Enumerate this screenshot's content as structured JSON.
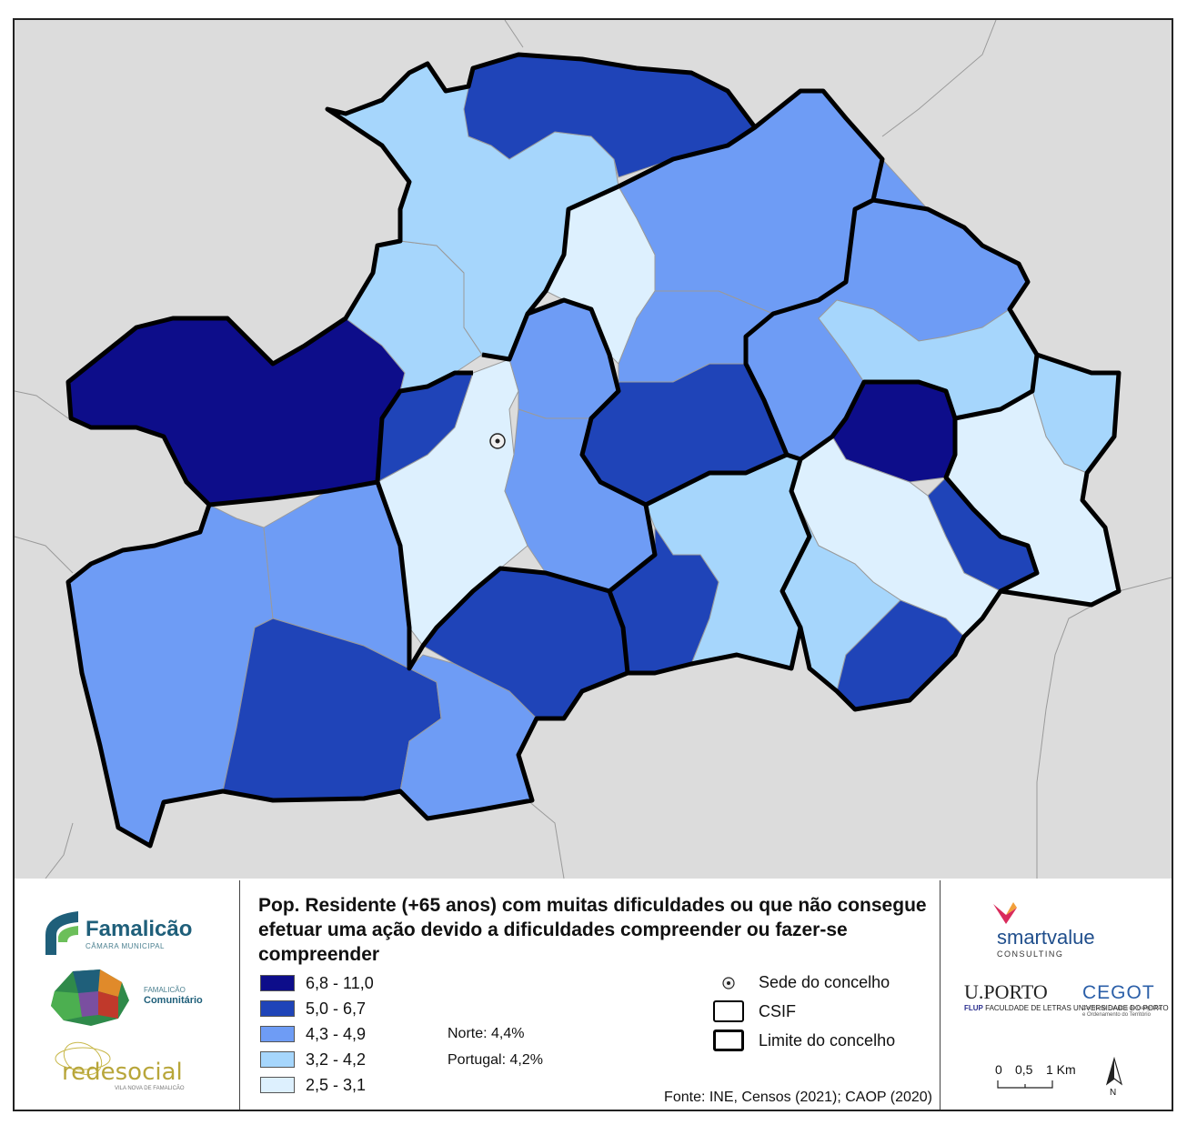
{
  "title": "Pop. Residente (+65 anos) com muitas dificuldades ou que não consegue efetuar uma ação devido a dificuldades compreender ou fazer-se compreender",
  "legend": {
    "classes": [
      {
        "label": "6,8 - 11,0",
        "color": "#0d0d8a"
      },
      {
        "label": "5,0 - 6,7",
        "color": "#1f44b8"
      },
      {
        "label": "4,3 - 4,9",
        "color": "#6e9cf5"
      },
      {
        "label": "3,2 - 4,2",
        "color": "#a6d6fc"
      },
      {
        "label": "2,5 - 3,1",
        "color": "#ddf0fe"
      }
    ],
    "symbols": {
      "seat": "Sede do concelho",
      "csif": "CSIF",
      "limit": "Limite do concelho"
    }
  },
  "reference": {
    "norte": "Norte: 4,4%",
    "portugal": "Portugal: 4,2%"
  },
  "source": "Fonte: INE, Censos (2021); CAOP (2020)",
  "scale": {
    "zero": "0",
    "half": "0,5",
    "one": "1 Km",
    "north": "N"
  },
  "logos": {
    "famalicao": "Famalicão",
    "camara": "CÂMARA MUNICIPAL",
    "comunitario_top": "FAMALICÃO",
    "comunitario": "Comunitário",
    "redesocial": "redesocial",
    "redesocial_sub": "VILA NOVA DE FAMALICÃO",
    "smartvalue": "smartvalue",
    "consulting": "CONSULTING",
    "uporto": "U.PORTO",
    "flup": "FLUP",
    "flup_text": "FACULDADE DE LETRAS UNIVERSIDADE DO PORTO",
    "cegot": "CEGOT",
    "cegot_text": "Centro de Estudos de Geografia e Ordenamento do Território"
  },
  "colors": {
    "background_land": "#dcdcdc",
    "boundary": "#000000"
  }
}
